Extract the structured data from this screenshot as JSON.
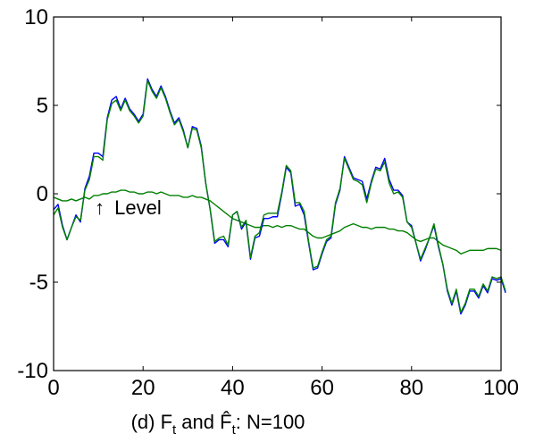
{
  "chart_data": {
    "type": "line",
    "title": "",
    "xlabel": "",
    "ylabel": "",
    "xlim": [
      0,
      100
    ],
    "ylim": [
      -10,
      10
    ],
    "x_ticks": [
      0,
      20,
      40,
      60,
      80,
      100
    ],
    "y_ticks": [
      -10,
      -5,
      0,
      5,
      10
    ],
    "x_tick_labels": [
      "0",
      "20",
      "40",
      "60",
      "80",
      "100"
    ],
    "y_tick_labels": [
      "-10",
      "-5",
      "0",
      "5",
      "10"
    ],
    "grid": false,
    "legend": "none",
    "caption": {
      "prefix": "(d) F",
      "sub1": "t",
      "mid": " and ",
      "f_hat": "F̂",
      "sub2": "t",
      "suffix": ": N=100"
    },
    "annotation": {
      "arrow_glyph": "↑",
      "text": "Level",
      "x": 11,
      "y": 0
    },
    "colors": {
      "factor": "#0000ff",
      "estimate": "#008000",
      "level": "#008000"
    },
    "series": [
      {
        "values": [
          -0.9,
          -0.6,
          -1.8,
          -2.6,
          -1.9,
          -1.2,
          -1.6,
          0.3,
          1.0,
          2.3,
          2.3,
          2.1,
          4.3,
          5.3,
          5.5,
          4.8,
          5.4,
          4.8,
          4.5,
          4.1,
          4.5,
          6.5,
          5.9,
          5.5,
          6.1,
          5.5,
          4.7,
          4.0,
          4.3,
          3.6,
          2.6,
          3.8,
          3.7,
          2.7,
          0.6,
          -0.9,
          -2.8,
          -2.6,
          -2.6,
          -3.0,
          -1.2,
          -1.0,
          -2.0,
          -1.6,
          -3.7,
          -2.5,
          -2.4,
          -1.4,
          -1.4,
          -1.3,
          -1.3,
          0.0,
          1.5,
          1.2,
          -0.7,
          -0.6,
          -1.2,
          -2.8,
          -4.3,
          -4.2,
          -3.4,
          -2.7,
          -2.5,
          -0.6,
          0.2,
          2.1,
          1.5,
          0.9,
          0.8,
          0.7,
          -0.3,
          0.7,
          1.5,
          1.4,
          2.0,
          0.8,
          0.2,
          0.2,
          -0.1,
          -1.6,
          -1.8,
          -2.8,
          -3.8,
          -3.2,
          -2.5,
          -1.8,
          -3.0,
          -4.0,
          -5.5,
          -6.3,
          -5.5,
          -6.8,
          -6.3,
          -5.5,
          -5.5,
          -5.9,
          -5.2,
          -5.6,
          -4.8,
          -4.9,
          -4.8,
          -5.6
        ],
        "color_key": "factor"
      },
      {
        "values": [
          -1.2,
          -0.8,
          -1.9,
          -2.6,
          -1.9,
          -1.3,
          -1.5,
          0.2,
          0.8,
          2.1,
          2.1,
          1.9,
          4.2,
          5.1,
          5.3,
          4.7,
          5.3,
          4.7,
          4.4,
          4.0,
          4.4,
          6.4,
          5.8,
          5.4,
          6.0,
          5.4,
          4.6,
          3.9,
          4.2,
          3.5,
          2.6,
          3.7,
          3.6,
          2.6,
          0.6,
          -0.9,
          -2.7,
          -2.5,
          -2.4,
          -2.9,
          -1.2,
          -1.0,
          -1.9,
          -1.5,
          -3.6,
          -2.4,
          -2.2,
          -1.2,
          -1.1,
          -1.1,
          -1.1,
          0.1,
          1.6,
          1.3,
          -0.5,
          -0.5,
          -1.0,
          -2.7,
          -4.2,
          -4.1,
          -3.3,
          -2.6,
          -2.4,
          -0.5,
          0.3,
          2.0,
          1.4,
          0.8,
          0.7,
          0.5,
          -0.5,
          0.6,
          1.4,
          1.3,
          1.8,
          0.6,
          0.0,
          0.1,
          -0.2,
          -1.6,
          -1.9,
          -2.8,
          -3.7,
          -3.1,
          -2.5,
          -1.7,
          -2.9,
          -4.0,
          -5.4,
          -6.2,
          -5.4,
          -6.7,
          -6.2,
          -5.4,
          -5.4,
          -5.8,
          -5.1,
          -5.5,
          -4.7,
          -4.8,
          -4.7,
          -5.5
        ],
        "color_key": "estimate"
      },
      {
        "values": [
          -0.2,
          -0.3,
          -0.4,
          -0.4,
          -0.3,
          -0.4,
          -0.3,
          -0.2,
          -0.3,
          -0.1,
          -0.1,
          0.0,
          0.0,
          0.1,
          0.1,
          0.2,
          0.2,
          0.1,
          0.1,
          0.0,
          0.0,
          0.1,
          0.1,
          0.0,
          0.1,
          0.0,
          -0.1,
          -0.1,
          -0.1,
          -0.2,
          -0.2,
          -0.1,
          -0.2,
          -0.2,
          -0.3,
          -0.4,
          -0.6,
          -0.8,
          -1.0,
          -1.2,
          -1.4,
          -1.5,
          -1.6,
          -1.7,
          -1.8,
          -1.9,
          -1.9,
          -1.8,
          -1.8,
          -1.9,
          -1.8,
          -1.9,
          -1.8,
          -1.8,
          -1.9,
          -2.0,
          -2.0,
          -2.2,
          -2.4,
          -2.5,
          -2.5,
          -2.4,
          -2.3,
          -2.2,
          -2.1,
          -1.9,
          -1.8,
          -1.7,
          -1.8,
          -1.9,
          -1.9,
          -2.0,
          -1.9,
          -1.9,
          -1.9,
          -2.0,
          -2.0,
          -2.1,
          -2.1,
          -2.2,
          -2.4,
          -2.6,
          -2.7,
          -2.6,
          -2.5,
          -2.5,
          -2.7,
          -2.9,
          -3.0,
          -3.1,
          -3.2,
          -3.4,
          -3.3,
          -3.2,
          -3.2,
          -3.2,
          -3.2,
          -3.1,
          -3.1,
          -3.1,
          -3.2
        ],
        "color_key": "level"
      }
    ]
  }
}
